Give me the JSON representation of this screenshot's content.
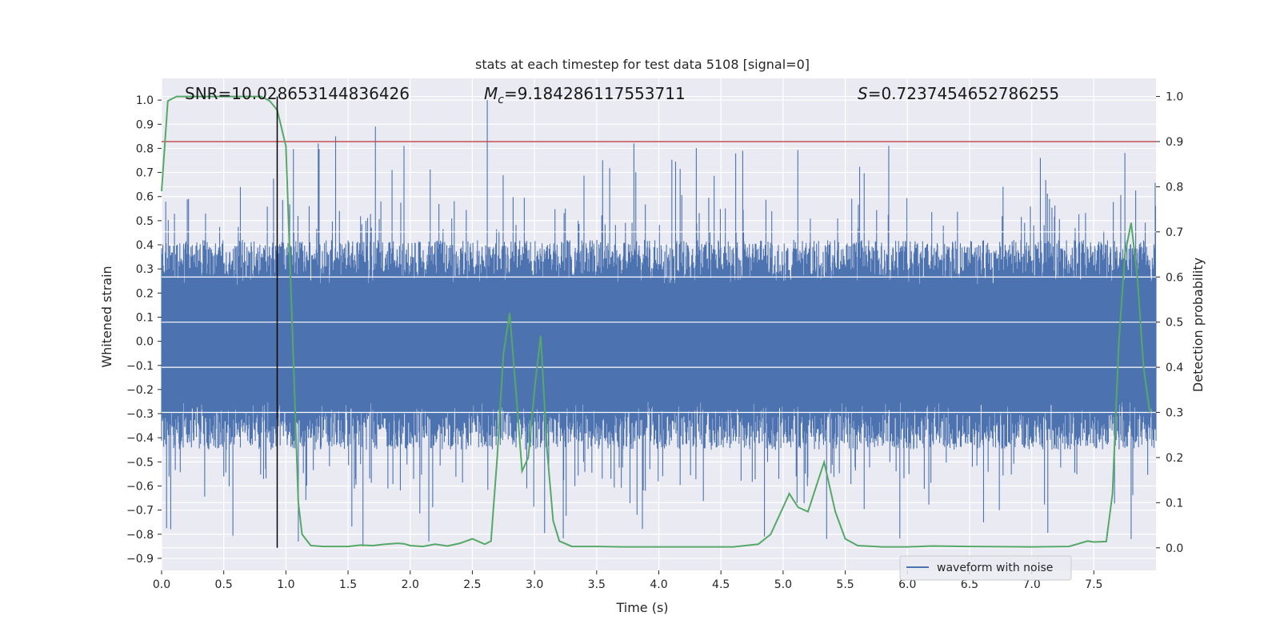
{
  "chart_data": {
    "type": "line",
    "title": "stats at each timestep for test data 5108 [signal=0]",
    "xlabel": "Time (s)",
    "ylabel_left": "Whitened strain",
    "ylabel_right": "Detection probability",
    "xlim": [
      0.0,
      8.0
    ],
    "ylim_left": [
      -0.95,
      1.09
    ],
    "ylim_right": [
      -0.05,
      1.04
    ],
    "x_ticks": [
      0.0,
      0.5,
      1.0,
      1.5,
      2.0,
      2.5,
      3.0,
      3.5,
      4.0,
      4.5,
      5.0,
      5.5,
      6.0,
      6.5,
      7.0,
      7.5
    ],
    "y_left_ticks": [
      -0.9,
      -0.8,
      -0.7,
      -0.6,
      -0.5,
      -0.4,
      -0.3,
      -0.2,
      -0.1,
      0.0,
      0.1,
      0.2,
      0.3,
      0.4,
      0.5,
      0.6,
      0.7,
      0.8,
      0.9,
      1.0
    ],
    "y_right_ticks": [
      0.0,
      0.1,
      0.2,
      0.3,
      0.4,
      0.5,
      0.6,
      0.7,
      0.8,
      0.9,
      1.0
    ],
    "grid": true,
    "legend": {
      "entries": [
        "waveform with noise"
      ],
      "placement": "lower-right"
    },
    "annotations": {
      "snr": "SNR=10.028653144836426",
      "mc_symbol": "M",
      "mc_sub": "c",
      "mc_value": "=9.184286117553711",
      "s_symbol": "S",
      "s_value": "=0.7237454652786255"
    },
    "threshold_right": 0.9,
    "vertical_marker_x": 0.93,
    "waveform_envelope": {
      "x": [
        0.0,
        0.5,
        1.0,
        1.5,
        2.0,
        2.5,
        3.0,
        3.5,
        4.0,
        4.5,
        5.0,
        5.5,
        6.0,
        6.5,
        7.0,
        7.5,
        8.0
      ],
      "upper_typical": 0.42,
      "lower_typical": -0.45,
      "max_peak": 1.0,
      "min_peak": -0.85
    },
    "series": [
      {
        "name": "waveform with noise",
        "color": "#4c72b0",
        "description_values": "noise-like strain bounded roughly by [-0.85, 1.0]"
      },
      {
        "color": "#55a868",
        "axis": "right",
        "x": [
          0.0,
          0.05,
          0.12,
          0.2,
          0.3,
          0.4,
          0.5,
          0.6,
          0.7,
          0.8,
          0.87,
          0.93,
          1.0,
          1.05,
          1.1,
          1.13,
          1.2,
          1.3,
          1.4,
          1.5,
          1.6,
          1.7,
          1.8,
          1.9,
          1.95,
          2.0,
          2.1,
          2.2,
          2.3,
          2.4,
          2.5,
          2.6,
          2.65,
          2.7,
          2.75,
          2.8,
          2.85,
          2.9,
          2.95,
          3.0,
          3.05,
          3.1,
          3.15,
          3.2,
          3.3,
          3.5,
          3.7,
          4.0,
          4.3,
          4.6,
          4.8,
          4.9,
          4.95,
          5.0,
          5.05,
          5.12,
          5.2,
          5.33,
          5.42,
          5.5,
          5.6,
          5.8,
          6.0,
          6.2,
          6.5,
          7.0,
          7.3,
          7.45,
          7.5,
          7.6,
          7.65,
          7.7,
          7.75,
          7.8,
          7.85,
          7.9,
          7.95
        ],
        "y": [
          0.79,
          0.99,
          1.0,
          1.0,
          1.0,
          1.0,
          1.0,
          1.0,
          1.0,
          1.0,
          0.99,
          0.97,
          0.89,
          0.5,
          0.1,
          0.03,
          0.005,
          0.003,
          0.003,
          0.003,
          0.006,
          0.005,
          0.008,
          0.01,
          0.009,
          0.005,
          0.003,
          0.008,
          0.004,
          0.01,
          0.02,
          0.008,
          0.015,
          0.2,
          0.43,
          0.52,
          0.35,
          0.17,
          0.2,
          0.35,
          0.47,
          0.22,
          0.06,
          0.015,
          0.003,
          0.003,
          0.002,
          0.002,
          0.002,
          0.002,
          0.008,
          0.03,
          0.06,
          0.09,
          0.12,
          0.09,
          0.08,
          0.19,
          0.08,
          0.02,
          0.005,
          0.002,
          0.002,
          0.004,
          0.003,
          0.002,
          0.003,
          0.015,
          0.013,
          0.014,
          0.12,
          0.45,
          0.65,
          0.72,
          0.6,
          0.4,
          0.3
        ]
      }
    ],
    "colors": {
      "waveform": "#4c72b0",
      "probability": "#55a868",
      "threshold": "#c44e52",
      "marker": "#000000",
      "background": "#eaeaf2",
      "grid": "#ffffff"
    }
  }
}
